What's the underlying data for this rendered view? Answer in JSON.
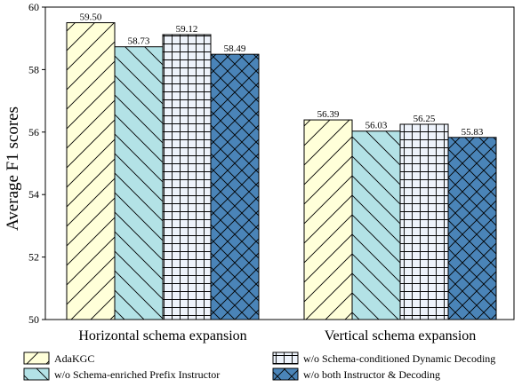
{
  "chart_data": {
    "type": "bar",
    "categories": [
      "Horizontal schema expansion",
      "Vertical schema expansion"
    ],
    "series": [
      {
        "name": "AdaKGC",
        "values": [
          59.5,
          56.39
        ],
        "color": "#ffffd9",
        "hatch": "forward-diagonal"
      },
      {
        "name": "w/o Schema-enriched Prefix Instructor",
        "values": [
          58.73,
          56.03
        ],
        "color": "#b3e2e6",
        "hatch": "back-diagonal"
      },
      {
        "name": "w/o Schema-conditioned Dynamic Decoding",
        "values": [
          59.12,
          56.25
        ],
        "color": "#eef3fb",
        "hatch": "grid"
      },
      {
        "name": "w/o both Instructor & Decoding",
        "values": [
          58.49,
          55.83
        ],
        "color": "#4a84b8",
        "hatch": "cross"
      }
    ],
    "data_labels": [
      [
        "59.50",
        "56.39"
      ],
      [
        "58.73",
        "56.03"
      ],
      [
        "59.12",
        "56.25"
      ],
      [
        "58.49",
        "55.83"
      ]
    ],
    "xlabel": "",
    "ylabel": "Average F1 scores",
    "ylim": [
      50,
      60
    ],
    "yticks": [
      50,
      52,
      54,
      56,
      58,
      60
    ],
    "grid": false,
    "legend_position": "bottom"
  }
}
